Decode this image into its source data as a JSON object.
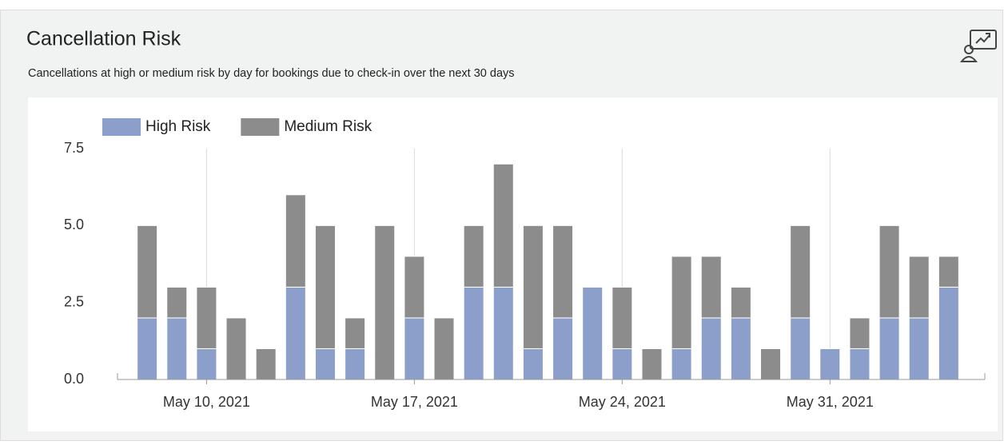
{
  "chart_data": {
    "type": "stacked_bar",
    "title": "Cancellation Risk",
    "subtitle": "Cancellations at high or medium risk by day for bookings due to check-in over the next 30 days",
    "x": [
      "2021-05-08",
      "2021-05-09",
      "2021-05-10",
      "2021-05-11",
      "2021-05-12",
      "2021-05-13",
      "2021-05-14",
      "2021-05-15",
      "2021-05-16",
      "2021-05-17",
      "2021-05-18",
      "2021-05-19",
      "2021-05-20",
      "2021-05-21",
      "2021-05-22",
      "2021-05-23",
      "2021-05-24",
      "2021-05-25",
      "2021-05-26",
      "2021-05-27",
      "2021-05-28",
      "2021-05-29",
      "2021-05-30",
      "2021-05-31",
      "2021-06-01",
      "2021-06-02",
      "2021-06-03",
      "2021-06-04"
    ],
    "series": [
      {
        "name": "High Risk",
        "color": "#8c9fca",
        "values": [
          2,
          2,
          1,
          0,
          0,
          3,
          1,
          1,
          0,
          2,
          0,
          3,
          3,
          1,
          2,
          3,
          1,
          0,
          1,
          2,
          2,
          0,
          2,
          1,
          1,
          2,
          2,
          3
        ]
      },
      {
        "name": "Medium Risk",
        "color": "#8c8c8c",
        "values": [
          3,
          1,
          2,
          2,
          1,
          3,
          4,
          1,
          5,
          2,
          2,
          2,
          4,
          4,
          3,
          0,
          2,
          1,
          3,
          2,
          1,
          1,
          3,
          0,
          1,
          3,
          2,
          1
        ]
      }
    ],
    "xlim": [
      "2021-05-07",
      "2021-06-05"
    ],
    "xticks": [
      {
        "value": "2021-05-10",
        "label": "May 10, 2021"
      },
      {
        "value": "2021-05-17",
        "label": "May 17, 2021"
      },
      {
        "value": "2021-05-24",
        "label": "May 24, 2021"
      },
      {
        "value": "2021-05-31",
        "label": "May 31, 2021"
      }
    ],
    "ylim": [
      0,
      7.5
    ],
    "yticks": [
      {
        "value": 0,
        "label": "0.0"
      },
      2.5,
      {
        "value": 5,
        "label": "5.0"
      },
      {
        "value": 7.5,
        "label": "7.5"
      }
    ],
    "grid": true,
    "legend": "top-left"
  }
}
